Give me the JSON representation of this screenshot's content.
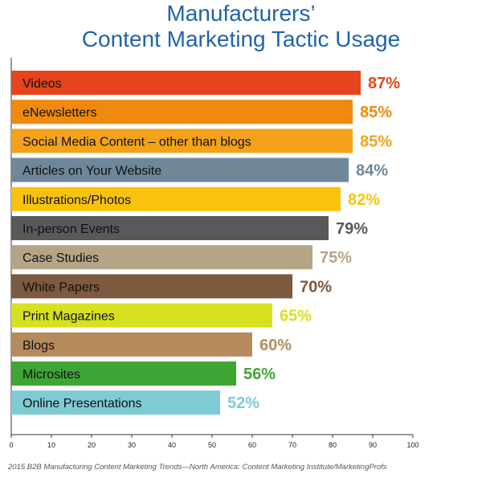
{
  "chart_data": {
    "type": "bar",
    "orientation": "horizontal",
    "title_lines": [
      "Manufacturers’",
      "Content Marketing Tactic Usage"
    ],
    "categories": [
      "Videos",
      "eNewsletters",
      "Social Media Content – other than blogs",
      "Articles on Your Website",
      "Illustrations/Photos",
      "In-person Events",
      "Case Studies",
      "White Papers",
      "Print Magazines",
      "Blogs",
      "Microsites",
      "Online Presentations"
    ],
    "values": [
      87,
      85,
      85,
      84,
      82,
      79,
      75,
      70,
      65,
      60,
      56,
      52
    ],
    "value_labels": [
      "87%",
      "85%",
      "85%",
      "84%",
      "82%",
      "79%",
      "75%",
      "70%",
      "65%",
      "60%",
      "56%",
      "52%"
    ],
    "bar_colors": [
      "#e5441c",
      "#f08a0c",
      "#f3a21a",
      "#6f8799",
      "#f9c20e",
      "#58595b",
      "#b5a587",
      "#7b5a3f",
      "#d7e021",
      "#b58b5e",
      "#3fa535",
      "#7fcbd5"
    ],
    "value_label_colors": [
      "#e5441c",
      "#f08a0c",
      "#f3a21a",
      "#6f8799",
      "#f9c20e",
      "#58595b",
      "#b5a587",
      "#7b5a3f",
      "#d7e021",
      "#b58b5e",
      "#3fa535",
      "#7fcbd5"
    ],
    "xlim": [
      0,
      100
    ],
    "x_ticks": [
      0,
      10,
      20,
      30,
      40,
      50,
      60,
      70,
      80,
      90,
      100
    ],
    "grid": false,
    "xlabel": "",
    "ylabel": "",
    "source": "2015 B2B Manufacturing Content Marketing Trends—North America: Content Marketing Institute/MarketingProfs"
  },
  "colors": {
    "title": "#1f63ad",
    "axis": "#333333"
  }
}
